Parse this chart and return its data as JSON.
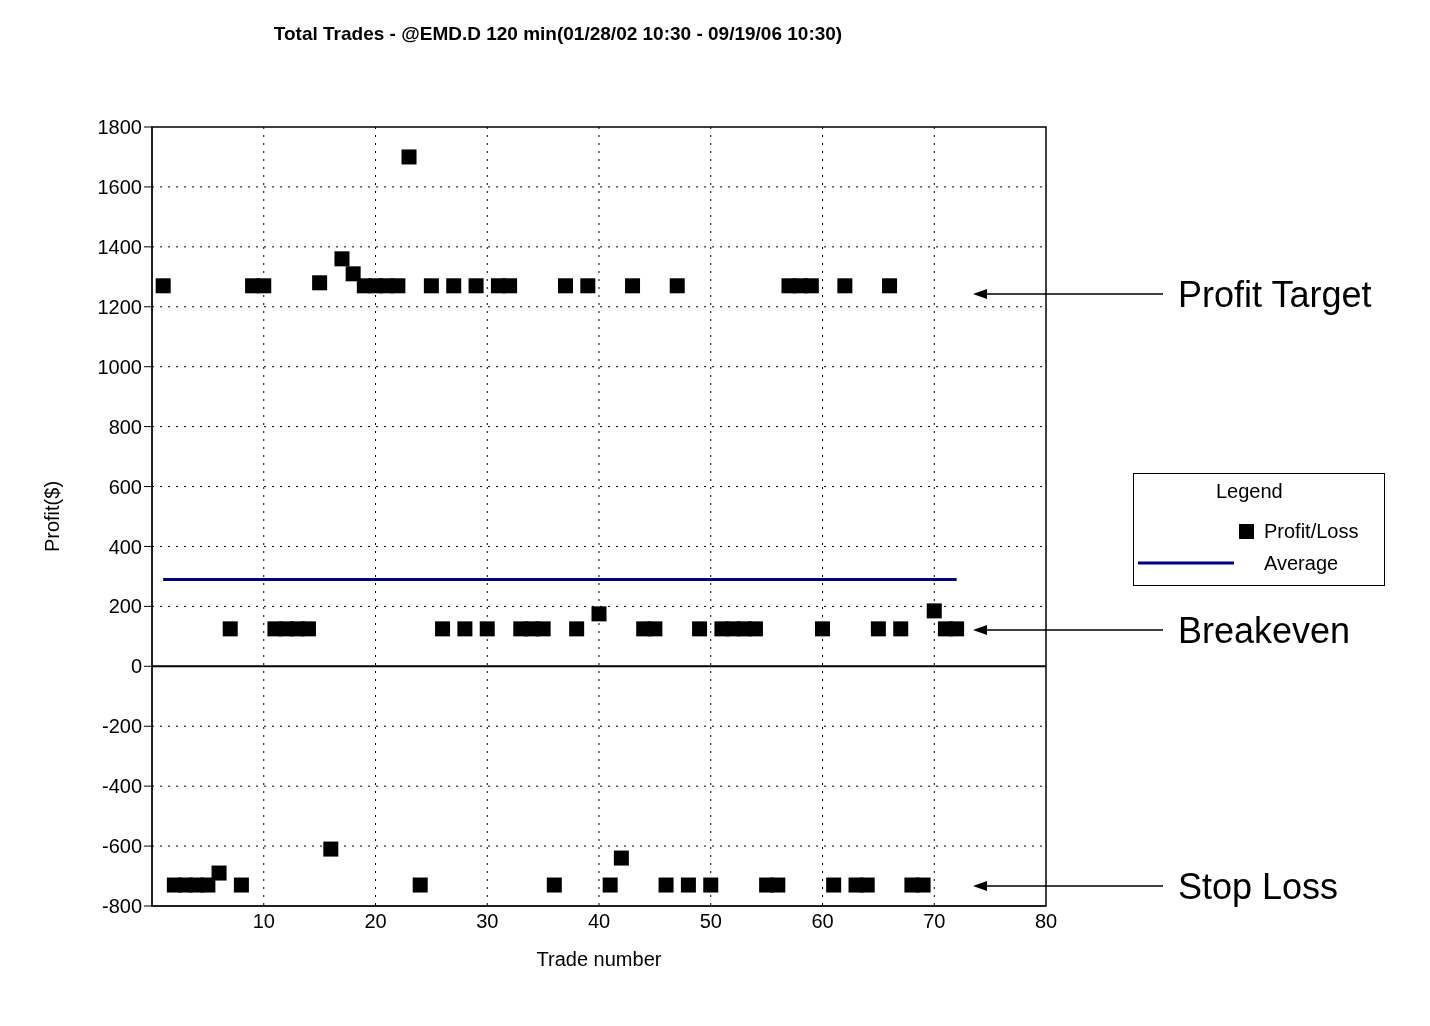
{
  "chart_data": {
    "type": "scatter",
    "title": "Total Trades - @EMD.D 120 min(01/28/02 10:30 - 09/19/06 10:30)",
    "xlabel": "Trade number",
    "ylabel": "Profit($)",
    "legend_title": "Legend",
    "legend": "right",
    "grid": true,
    "marker": "square",
    "xlim": [
      0,
      80
    ],
    "xticks": [
      10,
      20,
      30,
      40,
      50,
      60,
      70,
      80
    ],
    "ylim": [
      -800,
      1800
    ],
    "yticks": [
      -800,
      -600,
      -400,
      -200,
      0,
      200,
      400,
      600,
      800,
      1000,
      1200,
      1400,
      1600,
      1800
    ],
    "x": [
      1,
      2,
      3,
      4,
      5,
      6,
      7,
      8,
      9,
      10,
      11,
      12,
      13,
      14,
      15,
      16,
      17,
      18,
      19,
      20,
      21,
      22,
      23,
      24,
      25,
      26,
      27,
      28,
      29,
      30,
      31,
      32,
      33,
      34,
      35,
      36,
      37,
      38,
      39,
      40,
      41,
      42,
      43,
      44,
      45,
      46,
      47,
      48,
      49,
      50,
      51,
      52,
      53,
      54,
      55,
      56,
      57,
      58,
      59,
      60,
      61,
      62,
      63,
      64,
      65,
      66,
      67,
      68,
      69,
      70,
      71,
      72
    ],
    "series": [
      {
        "name": "Profit/Loss",
        "color": "#000000",
        "values": [
          1270,
          -730,
          -730,
          -730,
          -730,
          -690,
          125,
          -730,
          1270,
          1270,
          125,
          125,
          125,
          125,
          1280,
          -610,
          1360,
          1310,
          1270,
          1270,
          1270,
          1270,
          1700,
          -730,
          1270,
          125,
          1270,
          125,
          1270,
          125,
          1270,
          1270,
          125,
          125,
          125,
          -730,
          1270,
          125,
          1270,
          175,
          -730,
          -640,
          1270,
          125,
          125,
          -730,
          1270,
          -730,
          125,
          -730,
          125,
          125,
          125,
          125,
          -730,
          -730,
          1270,
          1270,
          1270,
          125,
          -730,
          1270,
          -730,
          -730,
          125,
          1270,
          125,
          -730,
          -730,
          185,
          125,
          125
        ]
      },
      {
        "name": "Average",
        "type": "line",
        "color": "#000080",
        "x": [
          1,
          72
        ],
        "values": [
          290,
          290
        ],
        "marker": "none",
        "line_style": "solid"
      }
    ],
    "ref_lines": [
      {
        "axis": "y",
        "value": 0,
        "color": "#000000",
        "line_style": "solid"
      }
    ],
    "annotations": [
      "Profit Target",
      "Breakeven",
      "Stop Loss"
    ]
  }
}
